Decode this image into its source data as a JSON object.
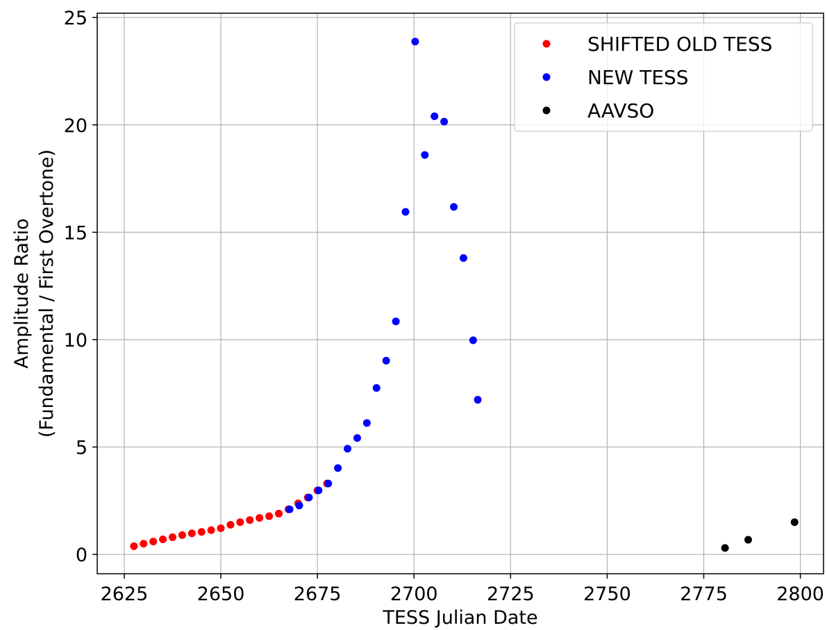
{
  "chart_data": {
    "type": "scatter",
    "xlabel": "TESS Julian Date",
    "ylabel_lines": [
      "Amplitude Ratio",
      "(Fundamental / First Overtone)"
    ],
    "xlim": [
      2618,
      2806
    ],
    "ylim": [
      -0.9,
      25.2
    ],
    "xticks": [
      2625,
      2650,
      2675,
      2700,
      2725,
      2750,
      2775,
      2800
    ],
    "yticks": [
      0,
      5,
      10,
      15,
      20,
      25
    ],
    "grid": true,
    "legend_position": "top-right",
    "series": [
      {
        "name": "SHIFTED OLD TESS",
        "color": "#ff0000",
        "points": [
          [
            2627.5,
            0.38
          ],
          [
            2630.0,
            0.5
          ],
          [
            2632.5,
            0.6
          ],
          [
            2635.0,
            0.7
          ],
          [
            2637.5,
            0.8
          ],
          [
            2640.0,
            0.9
          ],
          [
            2642.5,
            0.98
          ],
          [
            2645.0,
            1.05
          ],
          [
            2647.5,
            1.13
          ],
          [
            2650.0,
            1.22
          ],
          [
            2652.5,
            1.38
          ],
          [
            2655.0,
            1.5
          ],
          [
            2657.5,
            1.6
          ],
          [
            2660.0,
            1.7
          ],
          [
            2662.5,
            1.78
          ],
          [
            2665.0,
            1.9
          ],
          [
            2667.5,
            2.1
          ],
          [
            2670.0,
            2.38
          ],
          [
            2672.5,
            2.65
          ],
          [
            2675.0,
            2.98
          ],
          [
            2677.5,
            3.3
          ]
        ]
      },
      {
        "name": "NEW TESS",
        "color": "#0000ff",
        "points": [
          [
            2667.8,
            2.1
          ],
          [
            2670.3,
            2.28
          ],
          [
            2672.8,
            2.65
          ],
          [
            2675.3,
            2.98
          ],
          [
            2677.8,
            3.3
          ],
          [
            2680.3,
            4.02
          ],
          [
            2682.8,
            4.92
          ],
          [
            2685.3,
            5.42
          ],
          [
            2687.8,
            6.12
          ],
          [
            2690.3,
            7.75
          ],
          [
            2692.8,
            9.02
          ],
          [
            2695.3,
            10.85
          ],
          [
            2697.8,
            15.95
          ],
          [
            2700.3,
            23.88
          ],
          [
            2702.8,
            18.6
          ],
          [
            2705.3,
            20.4
          ],
          [
            2707.8,
            20.15
          ],
          [
            2710.3,
            16.18
          ],
          [
            2712.8,
            13.8
          ],
          [
            2715.3,
            9.97
          ],
          [
            2716.5,
            7.2
          ]
        ]
      },
      {
        "name": "AAVSO",
        "color": "#000000",
        "points": [
          [
            2780.5,
            0.3
          ],
          [
            2786.5,
            0.68
          ],
          [
            2798.5,
            1.5
          ]
        ]
      }
    ]
  }
}
